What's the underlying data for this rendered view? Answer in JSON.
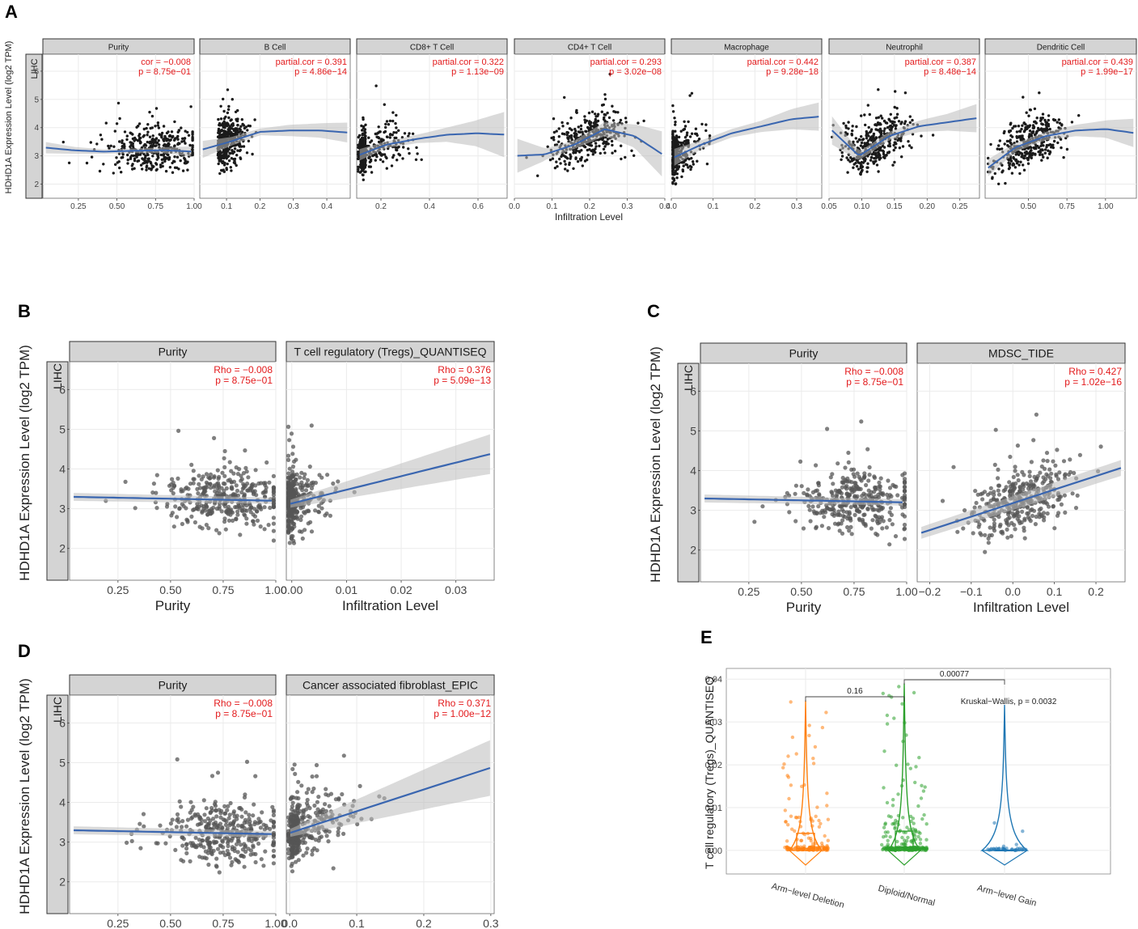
{
  "panel_labels": [
    "A",
    "B",
    "C",
    "D",
    "E"
  ],
  "colors": {
    "strip": "#d4d4d4",
    "strip_border": "#333333",
    "grid": "#ebebeb",
    "point": "#1a1a1a",
    "point_grey": "#555555",
    "line": "#3a66b0",
    "band": "#bcbcbc",
    "stat": "#e31a1c",
    "deletion": "#ff7f0e",
    "diploid": "#2ca02c",
    "gain": "#1f77b4"
  },
  "chart_data": [
    {
      "id": "A",
      "type": "scatter",
      "title": "",
      "row_strip": "LIHC",
      "ylabel": "HDHD1A Expression Level (log2 TPM)",
      "xlabel": "Infiltration Level",
      "ylim": [
        1.5,
        6.6
      ],
      "yticks": [
        "2",
        "3",
        "4",
        "5",
        "6"
      ],
      "facets": [
        {
          "name": "Purity",
          "stat1": "cor = −0.008",
          "stat2": "p = 8.75e−01",
          "xlim": [
            0.02,
            1.0
          ],
          "xticks": [
            "0.25",
            "0.50",
            "0.75",
            "1.00"
          ],
          "fit": [
            3.3,
            3.2,
            3.15,
            3.18,
            3.2,
            3.15
          ],
          "band": [
            0.2,
            0.12,
            0.08,
            0.08,
            0.1,
            0.18
          ]
        },
        {
          "name": "B Cell",
          "stat1": "partial.cor = 0.391",
          "stat2": "p = 4.86e−14",
          "xlim": [
            0.02,
            0.47
          ],
          "xticks": [
            "0.1",
            "0.2",
            "0.3",
            "0.4"
          ],
          "fit": [
            3.2,
            3.5,
            3.85,
            3.9,
            3.9,
            3.82
          ],
          "band": [
            0.3,
            0.15,
            0.12,
            0.2,
            0.25,
            0.35
          ]
        },
        {
          "name": "CD8+ T Cell",
          "stat1": "partial.cor = 0.322",
          "stat2": "p = 1.13e−09",
          "xlim": [
            0.1,
            0.72
          ],
          "xticks": [
            "0.2",
            "0.4",
            "0.6"
          ],
          "fit": [
            3.0,
            3.4,
            3.6,
            3.75,
            3.8,
            3.75
          ],
          "band": [
            0.2,
            0.12,
            0.15,
            0.25,
            0.45,
            0.8
          ]
        },
        {
          "name": "CD4+ T Cell",
          "stat1": "partial.cor = 0.293",
          "stat2": "p = 3.02e−08",
          "xlim": [
            0.0,
            0.4
          ],
          "xticks": [
            "0.0",
            "0.1",
            "0.2",
            "0.3",
            "0.4"
          ],
          "fit": [
            3.0,
            3.05,
            3.4,
            3.95,
            3.7,
            3.0
          ],
          "band": [
            0.6,
            0.2,
            0.15,
            0.25,
            0.4,
            0.8
          ]
        },
        {
          "name": "Macrophage",
          "stat1": "partial.cor = 0.442",
          "stat2": "p = 9.28e−18",
          "xlim": [
            0.0,
            0.36
          ],
          "xticks": [
            "0.0",
            "0.1",
            "0.2",
            "0.3"
          ],
          "fit": [
            2.9,
            3.4,
            3.8,
            4.05,
            4.3,
            4.4
          ],
          "band": [
            0.3,
            0.15,
            0.15,
            0.2,
            0.35,
            0.5
          ]
        },
        {
          "name": "Neutrophil",
          "stat1": "partial.cor = 0.387",
          "stat2": "p = 8.48e−14",
          "xlim": [
            0.05,
            0.28
          ],
          "xticks": [
            "0.05",
            "0.10",
            "0.15",
            "0.20",
            "0.25"
          ],
          "fit": [
            4.0,
            3.0,
            3.7,
            4.05,
            4.2,
            4.35
          ],
          "band": [
            0.5,
            0.15,
            0.15,
            0.2,
            0.3,
            0.5
          ]
        },
        {
          "name": "Dendritic Cell",
          "stat1": "partial.cor = 0.439",
          "stat2": "p = 1.99e−17",
          "xlim": [
            0.22,
            1.2
          ],
          "xticks": [
            "0.50",
            "0.75",
            "1.00"
          ],
          "fit": [
            2.5,
            3.3,
            3.7,
            3.9,
            3.95,
            3.8
          ],
          "band": [
            0.3,
            0.15,
            0.15,
            0.2,
            0.3,
            0.5
          ]
        }
      ]
    },
    {
      "id": "B",
      "type": "scatter",
      "row_strip": "LIHC",
      "ylabel": "HDHD1A Expression Level (log2 TPM)",
      "ylim": [
        1.2,
        6.7
      ],
      "yticks": [
        "2",
        "3",
        "4",
        "5",
        "6"
      ],
      "facets": [
        {
          "name": "Purity",
          "stat1": "Rho = −0.008",
          "stat2": "p = 8.75e−01",
          "xlabel": "Purity",
          "xlim": [
            0.02,
            1.0
          ],
          "xticks": [
            "0.25",
            "0.50",
            "0.75",
            "1.00"
          ],
          "fit": [
            3.3,
            3.2
          ],
          "band": [
            0.1,
            0.08
          ]
        },
        {
          "name": "T cell regulatory (Tregs)_QUANTISEQ",
          "stat1": "Rho = 0.376",
          "stat2": "p = 5.09e−13",
          "xlabel": "Infiltration Level",
          "xlim": [
            -0.001,
            0.037
          ],
          "xticks": [
            "0.00",
            "0.01",
            "0.02",
            "0.03"
          ],
          "fit": [
            3.1,
            4.4
          ],
          "band": [
            0.1,
            0.5
          ]
        }
      ]
    },
    {
      "id": "C",
      "type": "scatter",
      "row_strip": "LIHC",
      "ylabel": "HDHD1A Expression Level (log2 TPM)",
      "ylim": [
        1.2,
        6.7
      ],
      "yticks": [
        "2",
        "3",
        "4",
        "5",
        "6"
      ],
      "facets": [
        {
          "name": "Purity",
          "stat1": "Rho = −0.008",
          "stat2": "p = 8.75e−01",
          "xlabel": "Purity",
          "xlim": [
            0.02,
            1.0
          ],
          "xticks": [
            "0.25",
            "0.50",
            "0.75",
            "1.00"
          ],
          "fit": [
            3.3,
            3.2
          ],
          "band": [
            0.1,
            0.08
          ]
        },
        {
          "name": "MDSC_TIDE",
          "stat1": "Rho = 0.427",
          "stat2": "p = 1.02e−16",
          "xlabel": "Infiltration Level",
          "xlim": [
            -0.23,
            0.27
          ],
          "xticks": [
            "−0.2",
            "−0.1",
            "0.0",
            "0.1",
            "0.2"
          ],
          "fit": [
            2.4,
            4.1
          ],
          "band": [
            0.15,
            0.2
          ]
        }
      ]
    },
    {
      "id": "D",
      "type": "scatter",
      "row_strip": "LIHC",
      "ylabel": "HDHD1A Expression Level (log2 TPM)",
      "ylim": [
        1.2,
        6.7
      ],
      "yticks": [
        "2",
        "3",
        "4",
        "5",
        "6"
      ],
      "facets": [
        {
          "name": "Purity",
          "stat1": "Rho = −0.008",
          "stat2": "p = 8.75e−01",
          "xlabel": "Purity",
          "xlim": [
            0.02,
            1.0
          ],
          "xticks": [
            "0.25",
            "0.50",
            "0.75",
            "1.00"
          ],
          "fit": [
            3.3,
            3.2
          ],
          "band": [
            0.1,
            0.08
          ]
        },
        {
          "name": "Cancer associated fibroblast_EPIC",
          "stat1": "Rho = 0.371",
          "stat2": "p = 1.00e−12",
          "xlabel": "Infiltration Level",
          "xlim": [
            -0.005,
            0.305
          ],
          "xticks": [
            "0.0",
            "0.1",
            "0.2",
            "0.3"
          ],
          "fit": [
            3.2,
            4.9
          ],
          "band": [
            0.1,
            0.7
          ]
        }
      ]
    },
    {
      "id": "E",
      "type": "box",
      "ylabel": "T cell regulatory (Tregs)_QUANTISEQ",
      "ylim": [
        -0.0055,
        0.0425
      ],
      "yticks": [
        "0.00",
        "0.01",
        "0.02",
        "0.03",
        "0.04"
      ],
      "categories": [
        "Arm−level Deletion",
        "Diploid/Normal",
        "Arm−level Gain"
      ],
      "groups": [
        {
          "name": "Arm−level Deletion",
          "q1": 0.0,
          "median": 0.0005,
          "q3": 0.004,
          "max": 0.035,
          "n": 140
        },
        {
          "name": "Diploid/Normal",
          "q1": 0.0,
          "median": 0.0008,
          "q3": 0.0045,
          "max": 0.039,
          "n": 220
        },
        {
          "name": "Arm−level Gain",
          "q1": 0.0,
          "median": 0.0,
          "q3": 0.0001,
          "max": 0.034,
          "n": 35
        }
      ],
      "comparisons": [
        {
          "between": [
            "Arm−level Deletion",
            "Diploid/Normal"
          ],
          "label": "0.16"
        },
        {
          "between": [
            "Diploid/Normal",
            "Arm−level Gain"
          ],
          "label": "0.00077"
        }
      ],
      "test_label": "Kruskal−Wallis, p = 0.0032"
    }
  ]
}
